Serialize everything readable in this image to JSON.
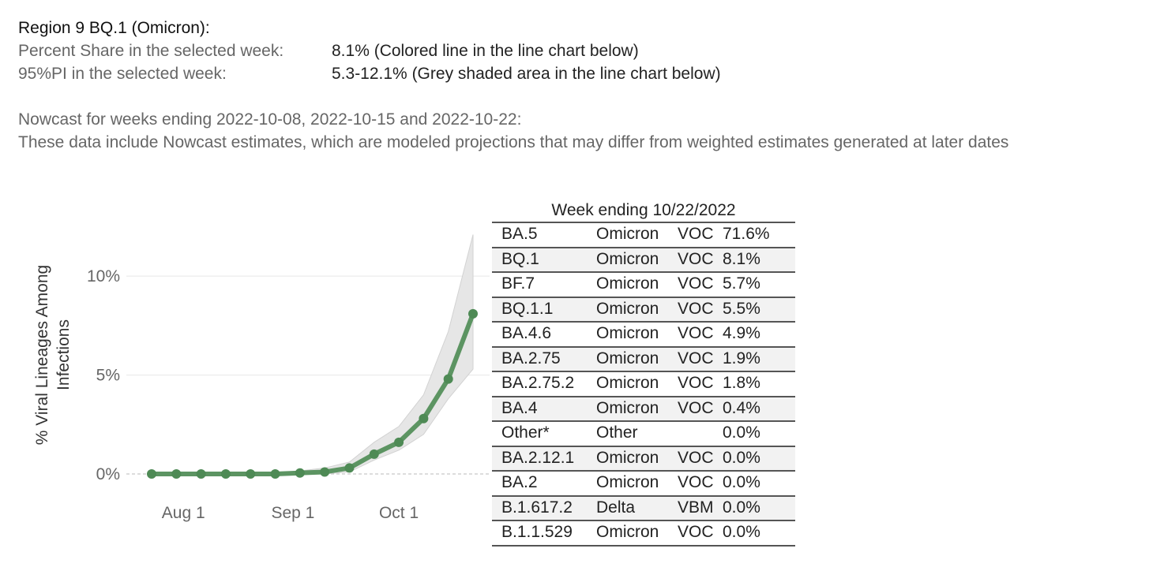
{
  "header": {
    "title": "Region 9  BQ.1 (Omicron):",
    "rows": [
      [
        "Percent Share in the selected week:",
        "8.1%  (Colored line in the line chart below)"
      ],
      [
        "95%PI in the selected week:",
        "5.3-12.1% (Grey shaded area in the line chart below)"
      ]
    ]
  },
  "nowcast": {
    "title": "Nowcast for weeks ending 2022-10-08, 2022-10-15 and 2022-10-22:",
    "note": "These data include Nowcast estimates, which are modeled projections that may differ from weighted estimates generated at later dates"
  },
  "chart_data": {
    "type": "line",
    "ylabel": [
      "% Viral Lineages Among",
      "Infections"
    ],
    "x": [
      "Jul 23",
      "Jul 30",
      "Aug 6",
      "Aug 13",
      "Aug 20",
      "Aug 27",
      "Sep 3",
      "Sep 10",
      "Sep 17",
      "Sep 24",
      "Oct 1",
      "Oct 8",
      "Oct 15",
      "Oct 22"
    ],
    "values": [
      0,
      0,
      0,
      0,
      0,
      0,
      0.05,
      0.1,
      0.3,
      1.0,
      1.6,
      2.8,
      4.8,
      8.1
    ],
    "lower": [
      0,
      0,
      0,
      0,
      0,
      0,
      0,
      0,
      0.1,
      0.7,
      1.2,
      2.0,
      3.8,
      5.3
    ],
    "upper": [
      0,
      0,
      0,
      0,
      0,
      0.05,
      0.15,
      0.3,
      0.6,
      1.6,
      2.4,
      4.0,
      7.2,
      12.1
    ],
    "color": "#5c9462",
    "band_color": "#e6e6e6",
    "xticks": [
      "Aug 1",
      "Sep 1",
      "Oct 1"
    ],
    "ylim": [
      -0.6,
      12.4
    ],
    "yticks": [
      {
        "value": 0,
        "label": "0%"
      },
      {
        "value": 5,
        "label": "5%"
      },
      {
        "value": 10,
        "label": "10%"
      }
    ],
    "grid": true
  },
  "table": {
    "title": "Week ending 10/22/2022",
    "rows": [
      [
        "BA.5",
        "Omicron",
        "VOC",
        "71.6%"
      ],
      [
        "BQ.1",
        "Omicron",
        "VOC",
        "8.1%"
      ],
      [
        "BF.7",
        "Omicron",
        "VOC",
        "5.7%"
      ],
      [
        "BQ.1.1",
        "Omicron",
        "VOC",
        "5.5%"
      ],
      [
        "BA.4.6",
        "Omicron",
        "VOC",
        "4.9%"
      ],
      [
        "BA.2.75",
        "Omicron",
        "VOC",
        "1.9%"
      ],
      [
        "BA.2.75.2",
        "Omicron",
        "VOC",
        "1.8%"
      ],
      [
        "BA.4",
        "Omicron",
        "VOC",
        "0.4%"
      ],
      [
        "Other*",
        "Other",
        "",
        "0.0%"
      ],
      [
        "BA.2.12.1",
        "Omicron",
        "VOC",
        "0.0%"
      ],
      [
        "BA.2",
        "Omicron",
        "VOC",
        "0.0%"
      ],
      [
        "B.1.617.2",
        "Delta",
        "VBM",
        "0.0%"
      ],
      [
        "B.1.1.529",
        "Omicron",
        "VOC",
        "0.0%"
      ]
    ]
  }
}
